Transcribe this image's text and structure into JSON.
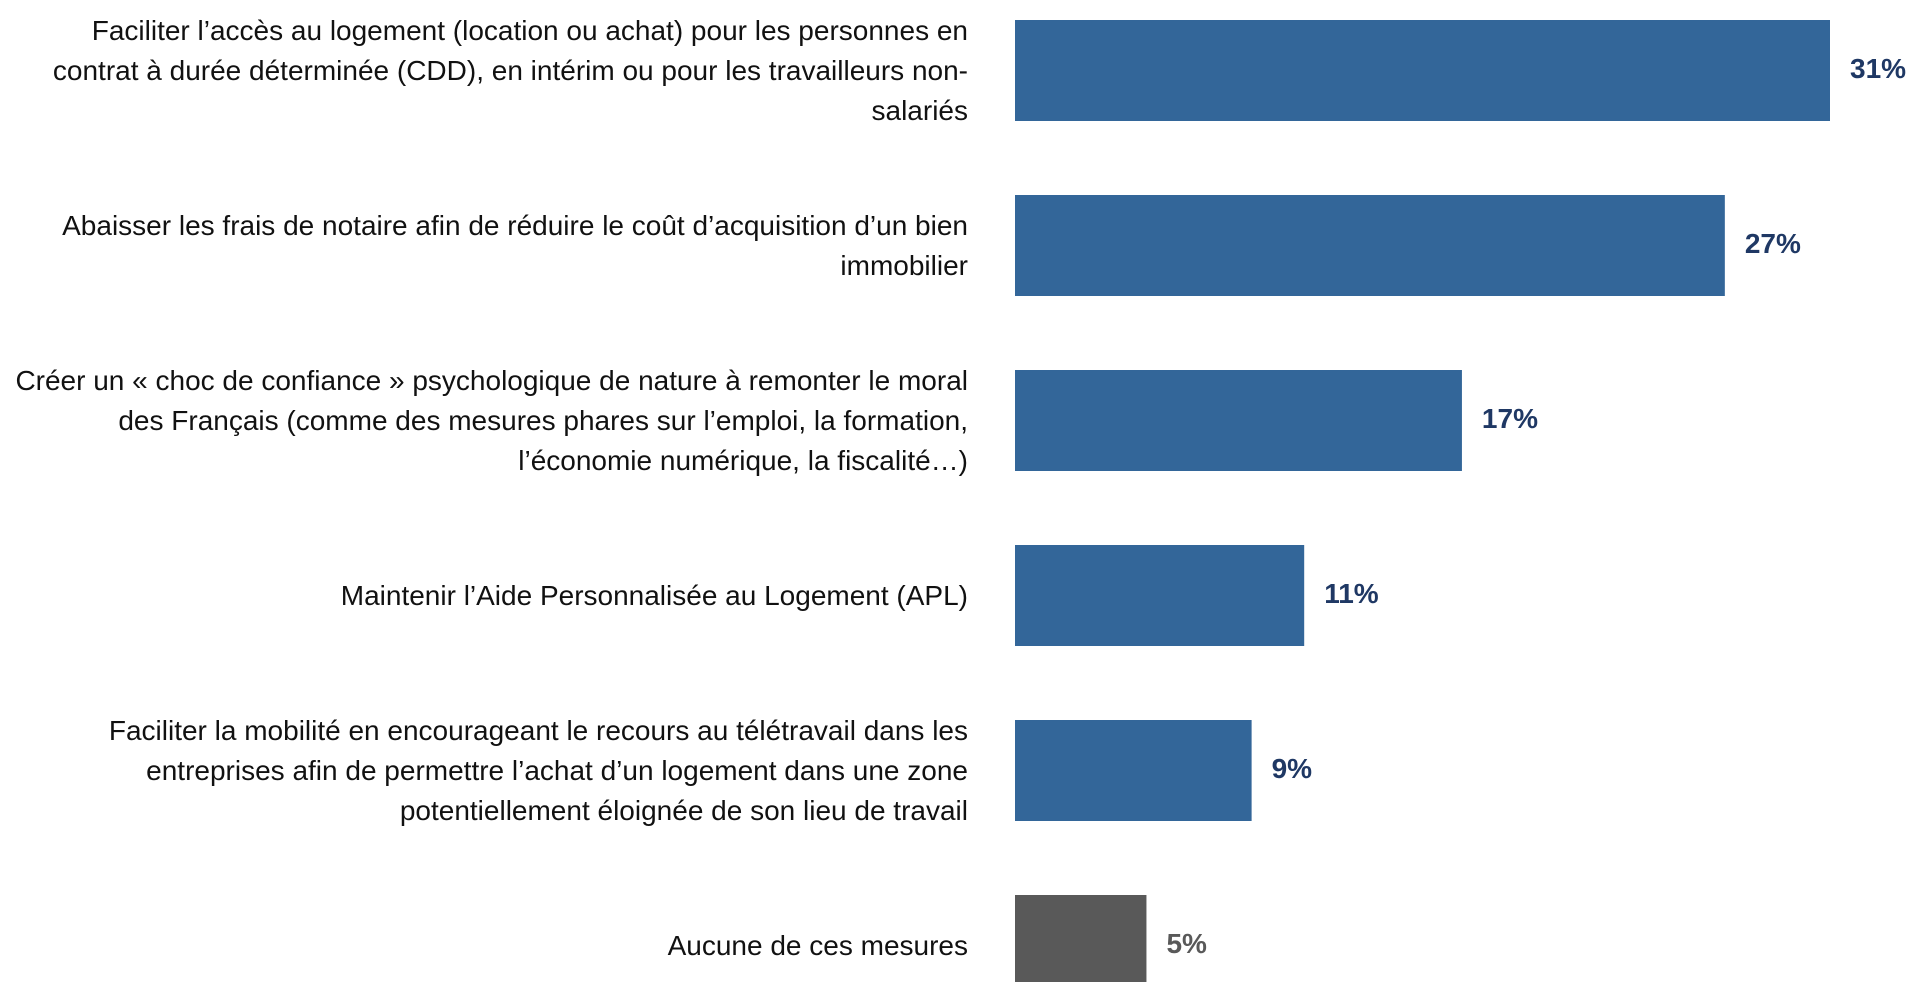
{
  "chart_data": {
    "type": "bar",
    "orientation": "horizontal",
    "categories": [
      "Faciliter l’accès au logement (location ou achat) pour les personnes en contrat à durée déterminée (CDD), en intérim ou pour les travailleurs non-salariés",
      "Abaisser les frais de notaire afin de réduire le coût d’acquisition d’un bien immobilier",
      "Créer un « choc de confiance » psychologique de nature à remonter le moral des Français (comme des mesures phares sur l’emploi, la formation, l’économie numérique, la fiscalité…)",
      "Maintenir l’Aide Personnalisée au Logement (APL)",
      "Faciliter la mobilité en encourageant le recours au télétravail dans les entreprises afin de permettre l’achat d’un logement dans une zone potentiellement éloignée de son lieu de travail",
      "Aucune de ces mesures"
    ],
    "values": [
      31,
      27,
      17,
      11,
      9,
      5
    ],
    "value_labels": [
      "31%",
      "27%",
      "17%",
      "11%",
      "9%",
      "5%"
    ],
    "colors": [
      "#336699",
      "#336699",
      "#336699",
      "#336699",
      "#336699",
      "#595959"
    ],
    "label_colors": [
      "#1f3864",
      "#1f3864",
      "#1f3864",
      "#1f3864",
      "#1f3864",
      "#595959"
    ]
  }
}
